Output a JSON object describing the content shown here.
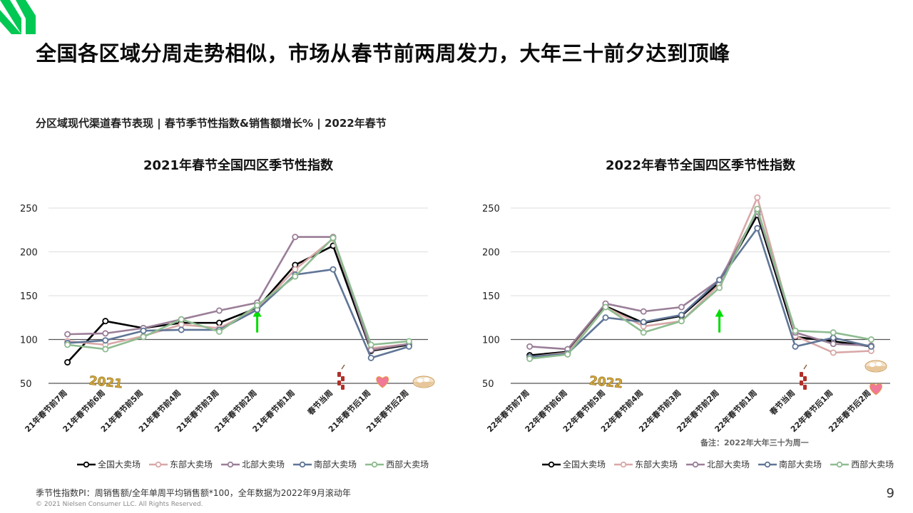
{
  "page": {
    "title": "全国各区域分周走势相似，市场从春节前两周发力，大年三十前夕达到顶峰",
    "subtitle": "分区域现代渠道春节表现 | 春节季节性指数&销售额增长% | 2022年春节",
    "footnote": "季节性指数PI：周销售额/全年单周平均销售额*100，全年数据为2022年9月滚动年",
    "copyright": "© 2021 Nielsen Consumer LLC. All Rights Reserved.",
    "page_number": "9",
    "note": "备注：2022年大年三十为周一",
    "brand_color": "#00c853"
  },
  "chart_data": [
    {
      "type": "line",
      "title": "2021年春节全国四区季节性指数",
      "categories": [
        "21年春节前7周",
        "21年春节前6周",
        "21年春节前5周",
        "21年春节前4周",
        "21年春节前3周",
        "21年春节前2周",
        "21年春节前1周",
        "春节当周",
        "21年春节后1周",
        "21年春节后2周"
      ],
      "y_ticks": [
        50,
        100,
        150,
        200,
        250
      ],
      "ylim": [
        50,
        250
      ],
      "grid": true,
      "legend_position": "bottom",
      "series": [
        {
          "name": "全国大卖场",
          "color": "#000000",
          "values": [
            74,
            121,
            113,
            119,
            119,
            136,
            185,
            207,
            87,
            94
          ]
        },
        {
          "name": "东部大卖场",
          "color": "#d8a8a8",
          "values": [
            98,
            94,
            104,
            117,
            113,
            135,
            180,
            215,
            90,
            95
          ]
        },
        {
          "name": "北部大卖场",
          "color": "#9a7e98",
          "values": [
            106,
            107,
            113,
            123,
            133,
            142,
            217,
            217,
            88,
            95
          ]
        },
        {
          "name": "南部大卖场",
          "color": "#5f7596",
          "values": [
            96,
            99,
            110,
            111,
            111,
            134,
            174,
            180,
            79,
            92
          ]
        },
        {
          "name": "西部大卖场",
          "color": "#8ebc90",
          "values": [
            94,
            89,
            103,
            123,
            109,
            139,
            172,
            216,
            94,
            98
          ]
        }
      ],
      "annotations": {
        "arrow_category_index": 5,
        "arrow_color": "#00dd00",
        "badge_text": "2021"
      }
    },
    {
      "type": "line",
      "title": "2022年春节全国四区季节性指数",
      "categories": [
        "22年春节前7周",
        "22年春节前6周",
        "22年春节前5周",
        "22年春节前4周",
        "22年春节前3周",
        "22年春节前2周",
        "22年春节前1周",
        "春节当周",
        "22年春节后1周",
        "22年春节后2周"
      ],
      "y_ticks": [
        50,
        100,
        150,
        200,
        250
      ],
      "ylim": [
        50,
        250
      ],
      "grid": true,
      "legend_position": "bottom",
      "series": [
        {
          "name": "全国大卖场",
          "color": "#000000",
          "values": [
            82,
            86,
            138,
            119,
            127,
            165,
            242,
            103,
            98,
            92
          ]
        },
        {
          "name": "东部大卖场",
          "color": "#d8a8a8",
          "values": [
            80,
            85,
            137,
            115,
            121,
            163,
            262,
            104,
            85,
            87
          ]
        },
        {
          "name": "北部大卖场",
          "color": "#9a7e98",
          "values": [
            92,
            89,
            141,
            132,
            137,
            168,
            246,
            108,
            95,
            93
          ]
        },
        {
          "name": "南部大卖场",
          "color": "#5f7596",
          "values": [
            80,
            84,
            125,
            120,
            128,
            168,
            227,
            92,
            102,
            92
          ]
        },
        {
          "name": "西部大卖场",
          "color": "#8ebc90",
          "values": [
            78,
            83,
            137,
            108,
            121,
            159,
            249,
            110,
            108,
            100
          ]
        }
      ],
      "annotations": {
        "arrow_category_index": 5,
        "arrow_color": "#00dd00",
        "badge_text": "2022"
      }
    }
  ]
}
